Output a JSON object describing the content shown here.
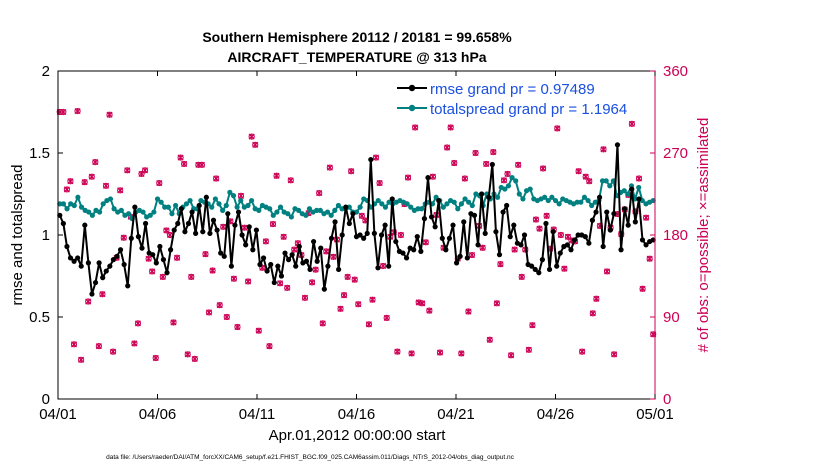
{
  "chart_data": {
    "type": "line",
    "title": "Southern Hemisphere 20112 / 20181 = 99.658%",
    "subtitle": "AIRCRAFT_TEMPERATURE @ 313 hPa",
    "xlabel": "Apr.01,2012 00:00:00 start",
    "ylabel": "rmse and totalspread",
    "ylabel_right": "# of obs: o=possible; ×=assimilated",
    "xlim": [
      0,
      30
    ],
    "ylim": [
      0,
      2
    ],
    "ylim_right": [
      0,
      360
    ],
    "x_tick_values": [
      0,
      5,
      10,
      15,
      20,
      25,
      30
    ],
    "x_ticks": [
      "04/01",
      "04/06",
      "04/11",
      "04/16",
      "04/21",
      "04/26",
      "05/01"
    ],
    "y_ticks": [
      "0",
      "0.5",
      "1",
      "1.5",
      "2"
    ],
    "y_tick_values": [
      0,
      0.5,
      1,
      1.5,
      2
    ],
    "y_ticks_right": [
      "0",
      "90",
      "180",
      "270",
      "360"
    ],
    "y_tick_values_right": [
      0,
      90,
      180,
      270,
      360
    ],
    "legend_position": "top-right",
    "series": [
      {
        "name": "rmse grand pr = 0.97489",
        "color": "#000000",
        "axis": "left",
        "values": [
          1.12,
          1.07,
          0.93,
          0.86,
          0.84,
          0.86,
          0.81,
          1.06,
          0.83,
          0.64,
          0.71,
          0.83,
          0.74,
          0.78,
          0.81,
          0.85,
          0.87,
          0.91,
          0.82,
          0.69,
          0.98,
          1.17,
          0.99,
          0.92,
          1.07,
          0.89,
          0.88,
          0.83,
          0.93,
          0.85,
          0.77,
          0.91,
          1.03,
          1.07,
          1.16,
          1.02,
          1.07,
          1.14,
          1.01,
          1.18,
          1.02,
          1.23,
          1.01,
          1.09,
          1.03,
          0.89,
          0.87,
          1.13,
          0.81,
          1.06,
          1.14,
          1.0,
          0.94,
          1.05,
          0.91,
          1.03,
          0.82,
          0.86,
          0.78,
          0.82,
          0.71,
          0.81,
          0.75,
          0.89,
          0.85,
          0.88,
          0.81,
          0.93,
          0.83,
          0.84,
          0.79,
          0.96,
          0.84,
          0.92,
          0.67,
          0.81,
          0.98,
          1.08,
          0.79,
          1.0,
          1.17,
          1.07,
          1.13,
          0.99,
          1.0,
          0.98,
          1.01,
          1.46,
          1.01,
          0.8,
          1.0,
          1.06,
          0.81,
          1.22,
          0.96,
          0.9,
          0.89,
          0.86,
          0.92,
          0.91,
          0.99,
          0.9,
          1.1,
          1.35,
          1.11,
          1.05,
          1.21,
          0.98,
          0.91,
          0.98,
          1.06,
          0.83,
          0.87,
          1.08,
          0.86,
          1.13,
          1.12,
          0.94,
          1.25,
          1.01,
          1.23,
          1.43,
          1.02,
          0.88,
          1.14,
          1.18,
          0.99,
          1.06,
          0.95,
          0.94,
          1.0,
          0.82,
          0.81,
          0.79,
          0.77,
          0.85,
          1.07,
          0.79,
          1.02,
          0.81,
          0.89,
          0.93,
          0.94,
          0.91,
          0.97,
          1.0,
          1.0,
          0.99,
          0.95,
          1.09,
          1.14,
          1.23,
          0.93,
          1.14,
          1.03,
          1.13,
          1.55,
          0.91,
          1.16,
          1.06,
          1.28,
          1.08,
          1.22,
          0.97,
          0.94,
          0.96,
          0.97
        ]
      },
      {
        "name": "totalspread grand pr = 1.1964",
        "color": "#008080",
        "axis": "left",
        "values": [
          1.19,
          1.19,
          1.16,
          1.19,
          1.18,
          1.23,
          1.17,
          1.15,
          1.14,
          1.12,
          1.15,
          1.14,
          1.19,
          1.21,
          1.22,
          1.16,
          1.14,
          1.15,
          1.12,
          1.13,
          1.1,
          1.14,
          1.15,
          1.14,
          1.11,
          1.12,
          1.14,
          1.22,
          1.2,
          1.17,
          1.17,
          1.13,
          1.18,
          1.13,
          1.17,
          1.19,
          1.21,
          1.16,
          1.16,
          1.21,
          1.2,
          1.19,
          1.17,
          1.22,
          1.19,
          1.15,
          1.18,
          1.26,
          1.24,
          1.17,
          1.21,
          1.17,
          1.18,
          1.21,
          1.16,
          1.15,
          1.18,
          1.17,
          1.16,
          1.12,
          1.14,
          1.17,
          1.14,
          1.13,
          1.11,
          1.16,
          1.15,
          1.13,
          1.12,
          1.16,
          1.14,
          1.15,
          1.15,
          1.13,
          1.14,
          1.12,
          1.15,
          1.18,
          1.16,
          1.16,
          1.17,
          1.14,
          1.14,
          1.17,
          1.22,
          1.21,
          1.17,
          1.19,
          1.21,
          1.19,
          1.17,
          1.2,
          1.19,
          1.2,
          1.21,
          1.2,
          1.19,
          1.17,
          1.15,
          1.16,
          1.16,
          1.19,
          1.2,
          1.19,
          1.23,
          1.21,
          1.17,
          1.19,
          1.21,
          1.2,
          1.16,
          1.19,
          1.22,
          1.2,
          1.18,
          1.25,
          1.24,
          1.18,
          1.25,
          1.22,
          1.25,
          1.23,
          1.29,
          1.28,
          1.3,
          1.35,
          1.33,
          1.25,
          1.22,
          1.27,
          1.28,
          1.22,
          1.21,
          1.22,
          1.23,
          1.21,
          1.23,
          1.21,
          1.19,
          1.22,
          1.21,
          1.2,
          1.19,
          1.2,
          1.2,
          1.23,
          1.21,
          1.18,
          1.2,
          1.21,
          1.33,
          1.33,
          1.3,
          1.33,
          1.24,
          1.26,
          1.27,
          1.25,
          1.3,
          1.22,
          1.29,
          1.21,
          1.19,
          1.2,
          1.21
        ]
      },
      {
        "name": "o=possible",
        "color": "#cc0055",
        "axis": "right",
        "marker": "circle",
        "values": [
          315,
          315,
          230,
          239,
          60,
          316,
          43,
          238,
          107,
          244,
          260,
          58,
          115,
          234,
          312,
          52,
          155,
          229,
          177,
          251,
          200,
          61,
          83,
          247,
          251,
          154,
          140,
          45,
          237,
          134,
          185,
          180,
          84,
          155,
          265,
          258,
          49,
          134,
          44,
          257,
          257,
          159,
          95,
          141,
          242,
          103,
          189,
          90,
          195,
          132,
          79,
          223,
          188,
          129,
          288,
          279,
          75,
          144,
          173,
          58,
          192,
          245,
          127,
          178,
          122,
          240,
          164,
          171,
          158,
          111,
          204,
          128,
          142,
          226,
          83,
          162,
          254,
          156,
          175,
          99,
          114,
          134,
          250,
          131,
          104,
          201,
          196,
          82,
          109,
          265,
          237,
          146,
          89,
          178,
          183,
          52,
          180,
          214,
          243,
          50,
          298,
          106,
          105,
          172,
          97,
          244,
          202,
          51,
          166,
          276,
          298,
          259,
          154,
          50,
          242,
          96,
          158,
          270,
          190,
          166,
          258,
          65,
          271,
          105,
          148,
          240,
          247,
          48,
          164,
          257,
          134,
          164,
          54,
          81,
          197,
          187,
          253,
          201,
          165,
          186,
          297,
          180,
          143,
          178,
          174,
          173,
          250,
          52,
          244,
          239,
          94,
          110,
          190,
          274,
          140,
          188,
          49,
          203,
          181,
          208,
          224,
          302,
          206,
          242,
          121,
          199,
          154,
          71
        ]
      },
      {
        "name": "×=assimilated",
        "color": "#cc0055",
        "axis": "right",
        "marker": "x",
        "values": [
          315,
          315,
          230,
          239,
          60,
          316,
          43,
          238,
          107,
          244,
          260,
          58,
          115,
          234,
          312,
          52,
          155,
          229,
          177,
          251,
          200,
          61,
          83,
          247,
          251,
          154,
          140,
          45,
          237,
          134,
          185,
          180,
          84,
          155,
          265,
          258,
          49,
          134,
          44,
          257,
          257,
          159,
          95,
          141,
          242,
          103,
          189,
          90,
          195,
          132,
          79,
          223,
          188,
          129,
          288,
          279,
          75,
          144,
          173,
          58,
          192,
          245,
          127,
          178,
          122,
          240,
          164,
          171,
          158,
          111,
          204,
          128,
          142,
          226,
          83,
          162,
          254,
          156,
          175,
          99,
          114,
          134,
          250,
          131,
          104,
          201,
          196,
          82,
          109,
          265,
          237,
          146,
          89,
          178,
          183,
          52,
          180,
          214,
          243,
          50,
          298,
          106,
          105,
          172,
          97,
          244,
          202,
          51,
          166,
          276,
          298,
          259,
          154,
          50,
          242,
          96,
          158,
          270,
          190,
          166,
          258,
          65,
          271,
          105,
          148,
          240,
          247,
          48,
          164,
          257,
          134,
          164,
          54,
          81,
          197,
          187,
          253,
          201,
          165,
          186,
          297,
          180,
          143,
          178,
          174,
          173,
          250,
          52,
          244,
          239,
          94,
          110,
          190,
          274,
          140,
          188,
          49,
          203,
          181,
          208,
          224,
          302,
          206,
          242,
          121,
          199,
          154,
          71
        ]
      }
    ]
  },
  "footer": "data file: /Users/raeder/DAI/ATM_forcXX/CAM6_setup/f.e21.FHIST_BGC.f09_025.CAM6assim.011/Diags_NTrS_2012-04/obs_diag_output.nc"
}
